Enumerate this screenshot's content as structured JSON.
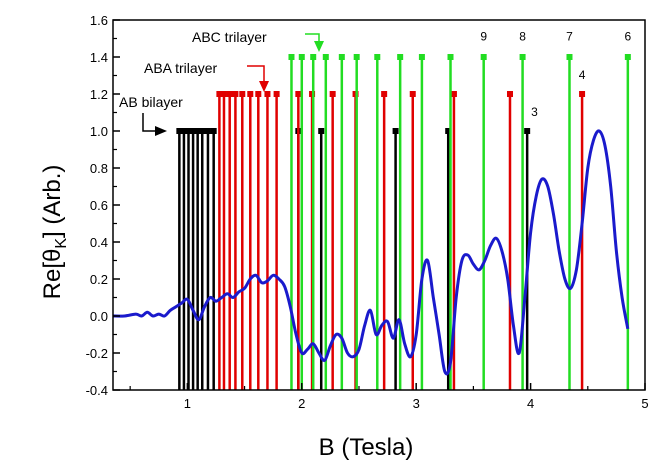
{
  "chart_data": {
    "type": "line",
    "title": "",
    "xlabel": "B (Tesla)",
    "ylabel_main": "Re[θ",
    "ylabel_sub": "K",
    "ylabel_tail": "] (Arb.)",
    "xlim": [
      0.35,
      5.0
    ],
    "ylim": [
      -0.4,
      1.6
    ],
    "xticks": [
      1,
      2,
      3,
      4,
      5
    ],
    "yticks": [
      -0.4,
      -0.2,
      0.0,
      0.2,
      0.4,
      0.6,
      0.8,
      1.0,
      1.2,
      1.4,
      1.6
    ],
    "ytick_labels": [
      "-0.4",
      "-0.2",
      "0.0",
      "0.2",
      "0.4",
      "0.6",
      "0.8",
      "1.0",
      "1.2",
      "1.4",
      "1.6"
    ],
    "series": [
      {
        "color": "#1a1acc",
        "x": [
          0.35,
          0.45,
          0.55,
          0.6,
          0.65,
          0.7,
          0.75,
          0.8,
          0.85,
          0.9,
          0.95,
          1.0,
          1.05,
          1.1,
          1.15,
          1.2,
          1.25,
          1.3,
          1.35,
          1.4,
          1.45,
          1.5,
          1.55,
          1.6,
          1.65,
          1.7,
          1.75,
          1.8,
          1.85,
          1.9,
          1.95,
          2.0,
          2.05,
          2.1,
          2.15,
          2.2,
          2.25,
          2.3,
          2.35,
          2.4,
          2.45,
          2.5,
          2.55,
          2.6,
          2.65,
          2.7,
          2.75,
          2.8,
          2.85,
          2.9,
          2.95,
          3.0,
          3.05,
          3.1,
          3.15,
          3.2,
          3.25,
          3.3,
          3.35,
          3.4,
          3.45,
          3.5,
          3.55,
          3.6,
          3.65,
          3.7,
          3.75,
          3.8,
          3.85,
          3.9,
          3.95,
          4.0,
          4.05,
          4.1,
          4.15,
          4.2,
          4.25,
          4.3,
          4.35,
          4.4,
          4.45,
          4.5,
          4.55,
          4.6,
          4.65,
          4.7,
          4.75,
          4.8,
          4.85
        ],
        "y": [
          0.0,
          0.0,
          0.01,
          0.0,
          0.02,
          0.0,
          0.01,
          0.0,
          0.03,
          0.05,
          0.07,
          0.09,
          0.03,
          -0.02,
          0.05,
          0.1,
          0.08,
          0.1,
          0.12,
          0.1,
          0.13,
          0.15,
          0.2,
          0.22,
          0.18,
          0.19,
          0.22,
          0.2,
          0.16,
          0.05,
          -0.1,
          -0.2,
          -0.18,
          -0.15,
          -0.2,
          -0.24,
          -0.16,
          -0.1,
          -0.12,
          -0.2,
          -0.22,
          -0.18,
          -0.05,
          0.03,
          -0.1,
          -0.05,
          -0.03,
          -0.12,
          -0.02,
          -0.15,
          -0.22,
          -0.1,
          0.2,
          0.3,
          0.1,
          -0.1,
          -0.3,
          -0.25,
          0.1,
          0.3,
          0.33,
          0.28,
          0.25,
          0.3,
          0.38,
          0.42,
          0.35,
          0.2,
          -0.05,
          -0.2,
          0.1,
          0.45,
          0.65,
          0.74,
          0.7,
          0.55,
          0.35,
          0.2,
          0.15,
          0.25,
          0.5,
          0.8,
          0.95,
          1.0,
          0.92,
          0.7,
          0.35,
          0.1,
          -0.07
        ]
      }
    ],
    "landau_levels": {
      "AB_bilayer": {
        "color": "#000000",
        "y_top": 1.0,
        "x": [
          0.93,
          0.97,
          1.01,
          1.05,
          1.09,
          1.13,
          1.18,
          1.23,
          1.97,
          2.17,
          2.82,
          3.28,
          3.97
        ]
      },
      "ABA_trilayer": {
        "color": "#e00000",
        "y_top": 1.2,
        "x": [
          1.28,
          1.32,
          1.37,
          1.42,
          1.48,
          1.55,
          1.62,
          1.7,
          1.78,
          1.97,
          2.09,
          2.27,
          2.47,
          2.72,
          2.97,
          3.33,
          3.82,
          4.45
        ]
      },
      "ABC_trilayer": {
        "color": "#22dd22",
        "y_top": 1.4,
        "x": [
          1.91,
          2.0,
          2.1,
          2.21,
          2.35,
          2.48,
          2.66,
          2.86,
          3.05,
          3.3,
          3.59,
          3.93,
          4.34,
          4.85
        ]
      }
    },
    "annotations": {
      "ab_bilayer": "AB bilayer",
      "aba_trilayer": "ABA trilayer",
      "abc_trilayer": "ABC trilayer"
    },
    "level_labels": [
      {
        "text": "9",
        "x": 3.59,
        "y": 1.49
      },
      {
        "text": "8",
        "x": 3.93,
        "y": 1.49
      },
      {
        "text": "7",
        "x": 4.34,
        "y": 1.49
      },
      {
        "text": "6",
        "x": 4.85,
        "y": 1.49
      },
      {
        "text": "4",
        "x": 4.45,
        "y": 1.28
      },
      {
        "text": "3",
        "x": 3.97,
        "y": 1.08
      }
    ]
  }
}
